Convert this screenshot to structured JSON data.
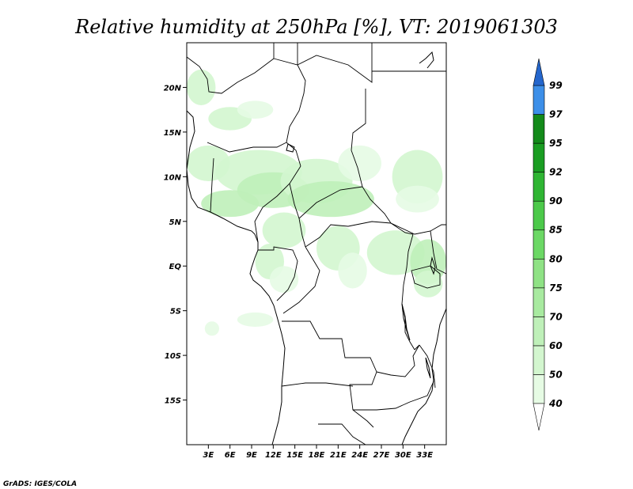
{
  "title": "Relative humidity at 250hPa [%], VT: 2019061303",
  "credit": "GrADS: IGES/COLA",
  "map": {
    "lon_range": [
      0,
      36
    ],
    "lat_range": [
      -20,
      25
    ],
    "lat_ticks": [
      {
        "value": 20,
        "label": "20N"
      },
      {
        "value": 15,
        "label": "15N"
      },
      {
        "value": 10,
        "label": "10N"
      },
      {
        "value": 5,
        "label": "5N"
      },
      {
        "value": 0,
        "label": "EQ"
      },
      {
        "value": -5,
        "label": "5S"
      },
      {
        "value": -10,
        "label": "10S"
      },
      {
        "value": -15,
        "label": "15S"
      }
    ],
    "lon_ticks": [
      {
        "value": 3,
        "label": "3E"
      },
      {
        "value": 6,
        "label": "6E"
      },
      {
        "value": 9,
        "label": "9E"
      },
      {
        "value": 12,
        "label": "12E"
      },
      {
        "value": 15,
        "label": "15E"
      },
      {
        "value": 18,
        "label": "18E"
      },
      {
        "value": 21,
        "label": "21E"
      },
      {
        "value": 24,
        "label": "24E"
      },
      {
        "value": 27,
        "label": "27E"
      },
      {
        "value": 30,
        "label": "30E"
      },
      {
        "value": 33,
        "label": "33E"
      }
    ]
  },
  "colorbar": {
    "levels": [
      {
        "label": "40",
        "color": "#e6fbe4"
      },
      {
        "label": "50",
        "color": "#d3f6cf"
      },
      {
        "label": "60",
        "color": "#bff0b9"
      },
      {
        "label": "70",
        "color": "#a8eaa0"
      },
      {
        "label": "75",
        "color": "#8fe285"
      },
      {
        "label": "80",
        "color": "#6cd865"
      },
      {
        "label": "85",
        "color": "#4cc94a"
      },
      {
        "label": "90",
        "color": "#2fb533"
      },
      {
        "label": "92",
        "color": "#1a9d22"
      },
      {
        "label": "95",
        "color": "#138a1a"
      },
      {
        "label": "97",
        "color": "#3d8fe8"
      },
      {
        "label": "99",
        "color": "#1a6fdc"
      }
    ],
    "top_arrow_color": "#2466cc",
    "bottom_arrow_color": "#ffffff"
  },
  "humidity_patches": [
    {
      "lon": 2.0,
      "lat": 20.0,
      "rx": 2.0,
      "ry": 2.0,
      "level": 1
    },
    {
      "lon": 6.0,
      "lat": 16.5,
      "rx": 3.0,
      "ry": 1.3,
      "level": 1
    },
    {
      "lon": 9.5,
      "lat": 17.5,
      "rx": 2.5,
      "ry": 1.0,
      "level": 0
    },
    {
      "lon": 3.0,
      "lat": 11.5,
      "rx": 3.0,
      "ry": 2.0,
      "level": 1
    },
    {
      "lon": 10.0,
      "lat": 10.5,
      "rx": 6.0,
      "ry": 2.5,
      "level": 1
    },
    {
      "lon": 12.0,
      "lat": 8.5,
      "rx": 5.0,
      "ry": 2.0,
      "level": 2
    },
    {
      "lon": 6.0,
      "lat": 7.0,
      "rx": 4.0,
      "ry": 1.5,
      "level": 2
    },
    {
      "lon": 18.0,
      "lat": 9.5,
      "rx": 5.0,
      "ry": 2.5,
      "level": 1
    },
    {
      "lon": 20.0,
      "lat": 7.5,
      "rx": 6.0,
      "ry": 2.0,
      "level": 2
    },
    {
      "lon": 24.0,
      "lat": 11.5,
      "rx": 3.0,
      "ry": 2.0,
      "level": 0
    },
    {
      "lon": 32.0,
      "lat": 10.0,
      "rx": 3.5,
      "ry": 3.0,
      "level": 1
    },
    {
      "lon": 32.0,
      "lat": 7.5,
      "rx": 3.0,
      "ry": 1.5,
      "level": 0
    },
    {
      "lon": 13.5,
      "lat": 4.0,
      "rx": 3.0,
      "ry": 2.0,
      "level": 1
    },
    {
      "lon": 11.5,
      "lat": 0.5,
      "rx": 2.0,
      "ry": 2.0,
      "level": 1
    },
    {
      "lon": 13.5,
      "lat": -1.5,
      "rx": 2.0,
      "ry": 1.5,
      "level": 0
    },
    {
      "lon": 21.0,
      "lat": 2.0,
      "rx": 3.0,
      "ry": 2.5,
      "level": 1
    },
    {
      "lon": 23.0,
      "lat": -0.5,
      "rx": 2.0,
      "ry": 2.0,
      "level": 0
    },
    {
      "lon": 29.0,
      "lat": 1.5,
      "rx": 4.0,
      "ry": 2.5,
      "level": 1
    },
    {
      "lon": 33.5,
      "lat": 0.5,
      "rx": 2.5,
      "ry": 2.5,
      "level": 2
    },
    {
      "lon": 33.5,
      "lat": -2.0,
      "rx": 2.0,
      "ry": 1.5,
      "level": 1
    },
    {
      "lon": 3.5,
      "lat": -7.0,
      "rx": 1.0,
      "ry": 0.8,
      "level": 0
    },
    {
      "lon": 9.5,
      "lat": -6.0,
      "rx": 2.5,
      "ry": 0.8,
      "level": 0
    }
  ]
}
